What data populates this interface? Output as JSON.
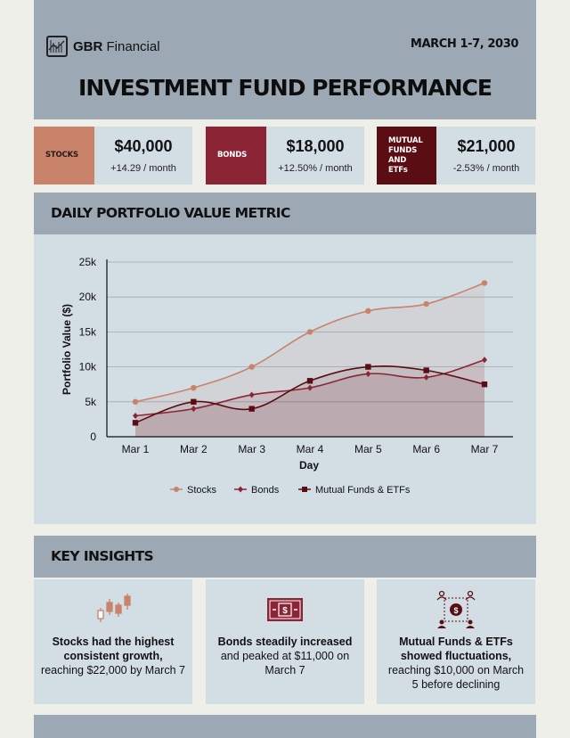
{
  "brand": {
    "name_bold": "GBR",
    "name_rest": " Financial"
  },
  "date_range": "MARCH 1-7, 2030",
  "title": "INVESTMENT FUND PERFORMANCE",
  "kpis": [
    {
      "label": "STOCKS",
      "value": "$40,000",
      "change": "+14.29 / month",
      "color": "#c8836a"
    },
    {
      "label": "BONDS",
      "value": "$18,000",
      "change": "+12.50% / month",
      "color": "#8b2536"
    },
    {
      "label": "MUTUAL FUNDS AND ETFs",
      "value": "$21,000",
      "change": "-2.53% / month",
      "color": "#5a0e13"
    }
  ],
  "chart_section": {
    "title": "DAILY PORTFOLIO VALUE METRIC"
  },
  "insights_section": {
    "title": "KEY INSIGHTS"
  },
  "insights": [
    {
      "bold": "Stocks had the highest consistent growth,",
      "rest": " reaching $22,000 by March 7",
      "icon": "candlestick-icon"
    },
    {
      "bold": "Bonds steadily increased",
      "rest": " and peaked at $11,000 on March 7",
      "icon": "banknote-icon"
    },
    {
      "bold": "Mutual Funds & ETFs showed fluctuations,",
      "rest": " reaching $10,000 on March 5 before declining",
      "icon": "money-network-icon"
    }
  ],
  "chart_data": {
    "type": "line",
    "categories": [
      "Mar 1",
      "Mar 2",
      "Mar 3",
      "Mar 4",
      "Mar 5",
      "Mar 6",
      "Mar 7"
    ],
    "series": [
      {
        "name": "Stocks",
        "values": [
          5000,
          7000,
          10000,
          15000,
          18000,
          19000,
          22000
        ],
        "color": "#c8836a",
        "marker": "circle"
      },
      {
        "name": "Bonds",
        "values": [
          3000,
          4000,
          6000,
          7000,
          9000,
          8500,
          11000
        ],
        "color": "#8b2536",
        "marker": "diamond"
      },
      {
        "name": "Mutual Funds & ETFs",
        "values": [
          2000,
          5000,
          4000,
          8000,
          10000,
          9500,
          7500
        ],
        "color": "#5a0e13",
        "marker": "square"
      }
    ],
    "xlabel": "Day",
    "ylabel": "Portfolio Value ($)",
    "ylim": [
      0,
      25000
    ],
    "yticks": [
      0,
      5000,
      10000,
      15000,
      20000,
      25000
    ],
    "ytick_labels": [
      "0",
      "5k",
      "10k",
      "15k",
      "20k",
      "25k"
    ],
    "grid": true,
    "legend": "bottom-center",
    "area_fill": true
  }
}
